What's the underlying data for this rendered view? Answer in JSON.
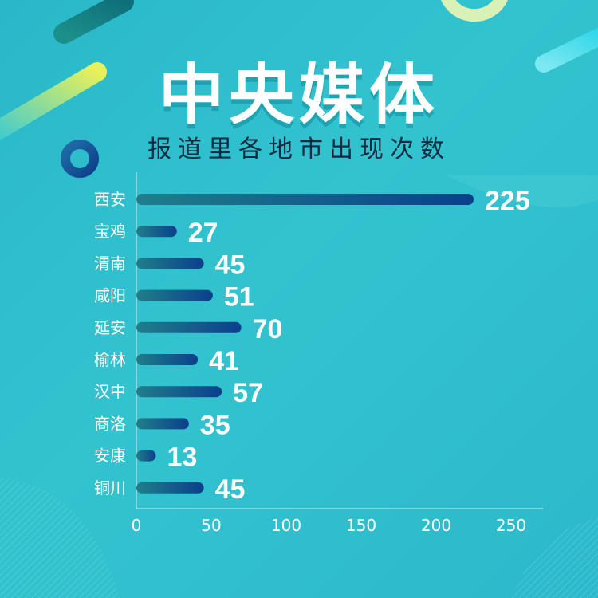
{
  "header": {
    "title": "中央媒体",
    "subtitle": "报道里各地市出现次数"
  },
  "colors": {
    "background": "#2ab8c9",
    "bar_start": "#1f7f8a",
    "bar_end": "#0b3f8c",
    "text": "#ffffff"
  },
  "chart_data": {
    "type": "bar",
    "orientation": "horizontal",
    "categories": [
      "西安",
      "宝鸡",
      "渭南",
      "咸阳",
      "延安",
      "榆林",
      "汉中",
      "商洛",
      "安康",
      "铜川"
    ],
    "values": [
      225,
      27,
      45,
      51,
      70,
      41,
      57,
      35,
      13,
      45
    ],
    "value_labels": [
      "225",
      "27",
      "45",
      "51",
      "70",
      "41",
      "57",
      "35",
      "13",
      "45"
    ],
    "xlim": [
      0,
      270
    ],
    "xticks": [
      0,
      50,
      100,
      150,
      200,
      250
    ],
    "xtick_labels": [
      "0",
      "50",
      "100",
      "150",
      "200",
      "250"
    ],
    "grid": false,
    "legend": false
  }
}
